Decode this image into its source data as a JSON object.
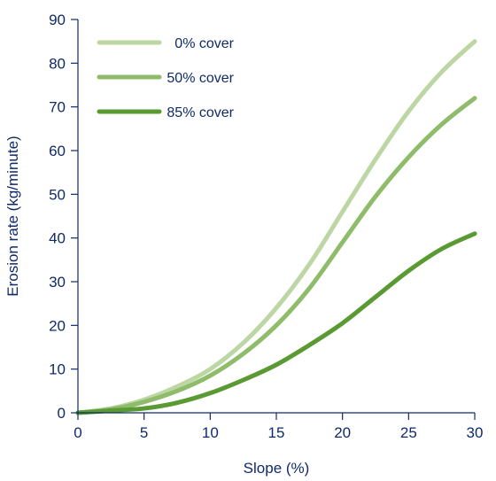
{
  "chart_data": {
    "type": "line",
    "xlabel": "Slope (%)",
    "ylabel": "Erosion rate (kg/minute)",
    "xlim": [
      0,
      30
    ],
    "ylim": [
      0,
      90
    ],
    "xticks": [
      0,
      5,
      10,
      15,
      20,
      25,
      30
    ],
    "yticks": [
      0,
      10,
      20,
      30,
      40,
      50,
      60,
      70,
      80,
      90
    ],
    "grid": false,
    "legend_position": "top-left",
    "series": [
      {
        "name": "0% cover",
        "color": "#bcd6a4",
        "x": [
          0,
          2.5,
          5,
          7.5,
          10,
          12.5,
          15,
          17.5,
          20,
          22.5,
          25,
          27.5,
          30
        ],
        "y": [
          0,
          1.0,
          3.0,
          6.0,
          10.0,
          16.0,
          24.0,
          34.0,
          46.0,
          58.0,
          69.0,
          78.0,
          85.0
        ]
      },
      {
        "name": "50% cover",
        "color": "#8fbc6a",
        "x": [
          0,
          2.5,
          5,
          7.5,
          10,
          12.5,
          15,
          17.5,
          20,
          22.5,
          25,
          27.5,
          30
        ],
        "y": [
          0,
          0.8,
          2.5,
          5.0,
          8.5,
          13.5,
          20.0,
          28.5,
          39.0,
          49.5,
          58.5,
          66.0,
          72.0
        ]
      },
      {
        "name": "85% cover",
        "color": "#5a9a32",
        "x": [
          0,
          2.5,
          5,
          7.5,
          10,
          12.5,
          15,
          17.5,
          20,
          22.5,
          25,
          27.5,
          30
        ],
        "y": [
          0,
          0.5,
          1.0,
          2.3,
          4.5,
          7.5,
          11.0,
          15.5,
          20.5,
          26.5,
          32.5,
          37.5,
          41.0
        ]
      }
    ]
  }
}
